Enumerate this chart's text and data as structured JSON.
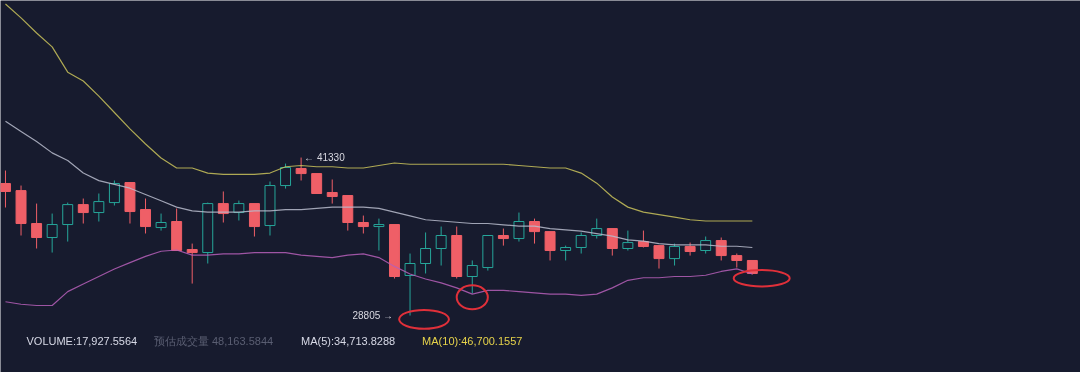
{
  "chart_data": {
    "type": "candlestick",
    "categories": [
      null,
      null,
      null,
      null,
      null,
      null,
      null,
      null,
      null,
      null,
      null,
      null,
      null,
      null,
      null,
      null,
      null,
      null,
      null,
      null,
      null,
      null,
      null,
      null,
      null,
      null,
      null,
      null,
      null,
      null,
      null,
      null,
      null,
      null,
      null,
      null,
      null,
      null,
      null,
      null,
      null,
      null,
      null,
      null,
      null,
      null,
      null,
      null,
      null
    ],
    "ylim": [
      24290,
      53780
    ],
    "ohlc": [
      [
        39270,
        40300,
        37370,
        38640
      ],
      [
        38710,
        39110,
        35150,
        36100
      ],
      [
        36100,
        37680,
        34120,
        34990
      ],
      [
        34990,
        36890,
        33800,
        36020
      ],
      [
        36020,
        37760,
        34670,
        37600
      ],
      [
        37600,
        38080,
        36100,
        36970
      ],
      [
        36970,
        38480,
        36260,
        37840
      ],
      [
        37760,
        39510,
        37530,
        39270
      ],
      [
        39350,
        39350,
        36100,
        37050
      ],
      [
        37210,
        38080,
        35310,
        35860
      ],
      [
        35780,
        36890,
        35540,
        36180
      ],
      [
        36260,
        37290,
        33960,
        33960
      ],
      [
        34040,
        34510,
        31340,
        33800
      ],
      [
        33800,
        37760,
        32930,
        37680
      ],
      [
        37680,
        38640,
        36180,
        36890
      ],
      [
        36970,
        37920,
        36340,
        37680
      ],
      [
        37680,
        37680,
        35070,
        35860
      ],
      [
        35940,
        39430,
        35150,
        39110
      ],
      [
        39110,
        40850,
        38870,
        40540
      ],
      [
        40460,
        41330,
        39510,
        40060
      ],
      [
        40060,
        40060,
        38480,
        38480
      ],
      [
        38560,
        39590,
        37680,
        38240
      ],
      [
        38320,
        38320,
        35540,
        36180
      ],
      [
        36180,
        36730,
        35310,
        35860
      ],
      [
        35860,
        36490,
        33960,
        36020
      ],
      [
        36020,
        36020,
        31740,
        31900
      ],
      [
        31980,
        33720,
        28805,
        32930
      ],
      [
        32930,
        35390,
        32140,
        34120
      ],
      [
        34120,
        35860,
        32770,
        35150
      ],
      [
        35150,
        35860,
        31740,
        31900
      ],
      [
        31900,
        33170,
        30550,
        32770
      ],
      [
        32610,
        35150,
        32370,
        35150
      ],
      [
        35150,
        35700,
        34350,
        34910
      ],
      [
        34910,
        36970,
        34670,
        36260
      ],
      [
        36260,
        36490,
        34510,
        35460
      ],
      [
        35460,
        35460,
        33170,
        33960
      ],
      [
        33960,
        34350,
        33170,
        34200
      ],
      [
        34200,
        35390,
        33720,
        35150
      ],
      [
        35150,
        36490,
        34910,
        35700
      ],
      [
        35700,
        35700,
        33560,
        34120
      ],
      [
        34120,
        35540,
        33960,
        34590
      ],
      [
        34670,
        35540,
        34200,
        34280
      ],
      [
        34350,
        34350,
        32530,
        33320
      ],
      [
        33320,
        34510,
        32770,
        34280
      ],
      [
        34280,
        34590,
        33560,
        33880
      ],
      [
        33960,
        35070,
        33720,
        34750
      ],
      [
        34750,
        34990,
        33170,
        33560
      ],
      [
        33560,
        33720,
        32610,
        33170
      ],
      [
        33170,
        33170,
        32060,
        32140
      ]
    ],
    "colors": [
      "#ef5f67",
      "#ef5f67",
      "#ef5f67",
      "#26a69a",
      "#26a69a",
      "#ef5f67",
      "#26a69a",
      "#26a69a",
      "#ef5f67",
      "#ef5f67",
      "#26a69a",
      "#ef5f67",
      "#ef5f67",
      "#26a69a",
      "#ef5f67",
      "#26a69a",
      "#ef5f67",
      "#26a69a",
      "#26a69a",
      "#ef5f67",
      "#ef5f67",
      "#ef5f67",
      "#ef5f67",
      "#ef5f67",
      "#26a69a",
      "#ef5f67",
      "#26a69a",
      "#26a69a",
      "#26a69a",
      "#ef5f67",
      "#26a69a",
      "#26a69a",
      "#ef5f67",
      "#26a69a",
      "#ef5f67",
      "#ef5f67",
      "#26a69a",
      "#26a69a",
      "#26a69a",
      "#ef5f67",
      "#26a69a",
      "#ef5f67",
      "#ef5f67",
      "#26a69a",
      "#ef5f67",
      "#26a69a",
      "#ef5f67",
      "#ef5f67",
      "#ef5f67"
    ],
    "series": [
      {
        "type": "line",
        "color": "#c9c25a",
        "values": [
          53500,
          52400,
          51200,
          50100,
          48100,
          47400,
          46200,
          44900,
          43600,
          42400,
          41300,
          40500,
          40500,
          40100,
          40000,
          40000,
          40000,
          40100,
          40600,
          40700,
          40600,
          40600,
          40500,
          40500,
          40700,
          40900,
          40800,
          40800,
          40800,
          40800,
          40800,
          40800,
          40800,
          40700,
          40600,
          40500,
          40500,
          40100,
          39300,
          38200,
          37400,
          37000,
          36800,
          36600,
          36400,
          36300,
          36300,
          36300,
          36300
        ]
      },
      {
        "type": "line",
        "color": "#b9bccd",
        "values": [
          44200,
          43400,
          42600,
          41700,
          41100,
          40100,
          39500,
          39200,
          38900,
          38400,
          37900,
          37400,
          37100,
          37000,
          37000,
          37000,
          37100,
          37100,
          37200,
          37200,
          37300,
          37400,
          37400,
          37400,
          37300,
          37000,
          36700,
          36400,
          36300,
          36200,
          36100,
          36100,
          36000,
          35900,
          35900,
          35700,
          35600,
          35500,
          35300,
          35100,
          34800,
          34700,
          34500,
          34400,
          34400,
          34400,
          34300,
          34300,
          34200
        ]
      },
      {
        "type": "line",
        "color": "#b65fb9",
        "values": [
          29900,
          29700,
          29600,
          29600,
          30700,
          31300,
          31900,
          32500,
          33000,
          33500,
          33900,
          34000,
          33600,
          33600,
          33700,
          33700,
          33800,
          33800,
          33800,
          33600,
          33500,
          33400,
          33600,
          33700,
          33400,
          32700,
          32100,
          31700,
          31400,
          31000,
          30500,
          30800,
          30800,
          30700,
          30600,
          30500,
          30500,
          30400,
          30500,
          31000,
          31600,
          31800,
          31800,
          31900,
          31900,
          32000,
          32300,
          32500,
          32100
        ]
      }
    ],
    "annotations": [
      "← 41330",
      "28805 →",
      "VOLUME:17,927.5564",
      "预估成交量 48,163.5844",
      "MA(5):34,713.8288",
      "MA(10):46,700.1557"
    ]
  }
}
